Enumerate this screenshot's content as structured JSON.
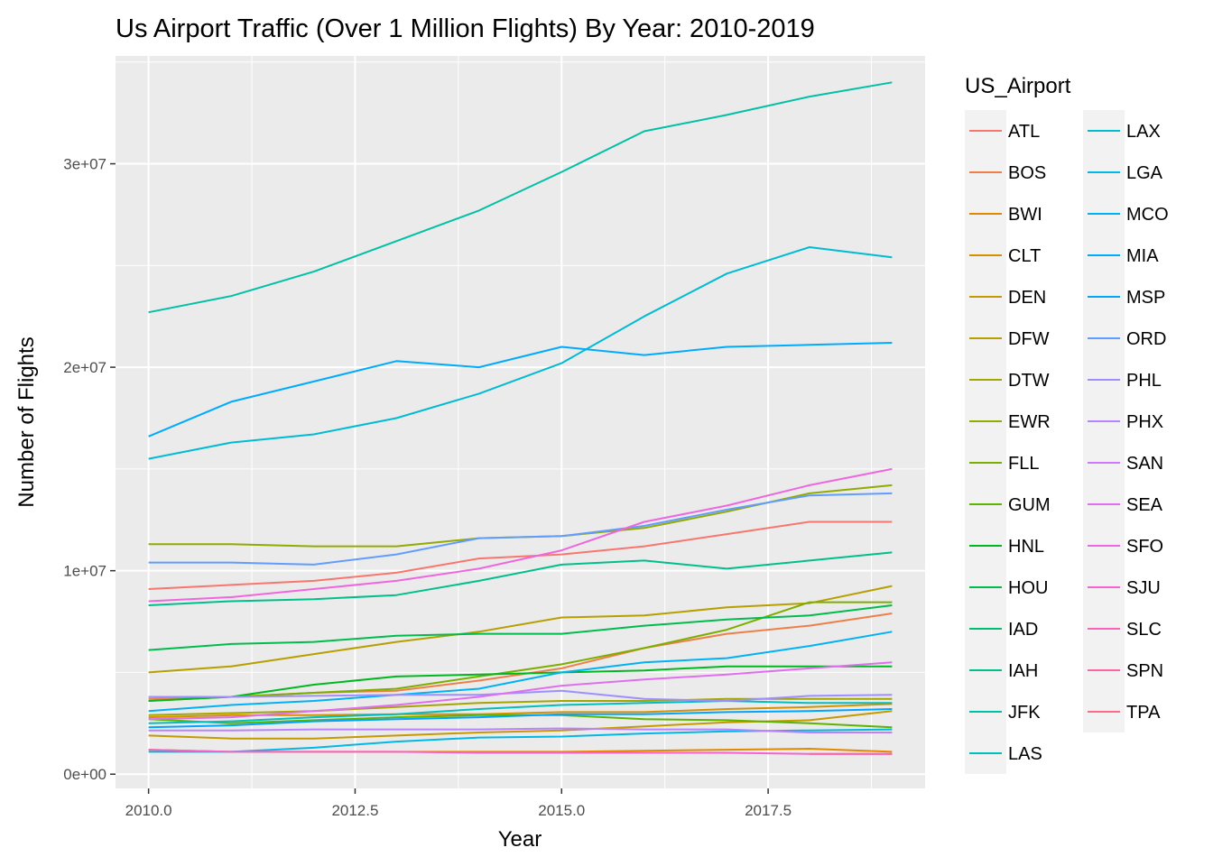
{
  "chart_data": {
    "type": "line",
    "title": "Us Airport Traffic (Over 1 Million Flights) By Year: 2010-2019",
    "xlabel": "Year",
    "ylabel": "Number of Flights",
    "xlim": [
      2009.6,
      2019.4
    ],
    "ylim": [
      -700000,
      35300000
    ],
    "x_ticks": [
      2010,
      2012.5,
      2015,
      2017.5
    ],
    "x_tick_labels": [
      "2010.0",
      "2012.5",
      "2015.0",
      "2017.5"
    ],
    "y_ticks": [
      0,
      10000000,
      20000000,
      30000000
    ],
    "y_tick_labels": [
      "0e+00",
      "1e+07",
      "2e+07",
      "3e+07"
    ],
    "grid": true,
    "legend_title": "US_Airport",
    "legend_position": "right",
    "x": [
      2010,
      2011,
      2012,
      2013,
      2014,
      2015,
      2016,
      2017,
      2018,
      2019
    ],
    "series": [
      {
        "name": "ATL",
        "color": "#F8766D",
        "values": [
          9100000.0,
          9300000.0,
          9500000.0,
          9900000.0,
          10600000.0,
          10800000.0,
          11200000.0,
          11800000.0,
          12400000.0,
          12400000.0
        ]
      },
      {
        "name": "BOS",
        "color": "#EF7F49",
        "values": [
          3700000.0,
          3800000.0,
          4000000.0,
          4100000.0,
          4600000.0,
          5200000.0,
          6200000.0,
          6900000.0,
          7300000.0,
          7900000.0
        ]
      },
      {
        "name": "BWI",
        "color": "#E38900",
        "values": [
          1200000.0,
          1100000.0,
          1100000.0,
          1100000.0,
          1100000.0,
          1100000.0,
          1150000.0,
          1200000.0,
          1250000.0,
          1100000.0
        ]
      },
      {
        "name": "CLT",
        "color": "#D59100",
        "values": [
          2800000.0,
          2900000.0,
          2900000.0,
          2950000.0,
          2950000.0,
          3050000.0,
          3050000.0,
          3200000.0,
          3300000.0,
          3450000.0
        ]
      },
      {
        "name": "DEN",
        "color": "#C49A00",
        "values": [
          1900000.0,
          1750000.0,
          1750000.0,
          1900000.0,
          2050000.0,
          2150000.0,
          2350000.0,
          2550000.0,
          2650000.0,
          3100000.0
        ]
      },
      {
        "name": "DFW",
        "color": "#B79F00",
        "values": [
          5000000.0,
          5300000.0,
          5900000.0,
          6500000.0,
          7000000.0,
          7700000.0,
          7800000.0,
          8200000.0,
          8400000.0,
          9250000.0
        ]
      },
      {
        "name": "DTW",
        "color": "#A3A500",
        "values": [
          2900000.0,
          3000000.0,
          3100000.0,
          3300000.0,
          3500000.0,
          3600000.0,
          3600000.0,
          3700000.0,
          3700000.0,
          3700000.0
        ]
      },
      {
        "name": "EWR",
        "color": "#93AA00",
        "values": [
          11300000.0,
          11300000.0,
          11200000.0,
          11200000.0,
          11600000.0,
          11700000.0,
          12100000.0,
          12900000.0,
          13800000.0,
          14200000.0
        ]
      },
      {
        "name": "FLL",
        "color": "#7CAE00",
        "values": [
          3600000.0,
          3800000.0,
          4000000.0,
          4200000.0,
          4800000.0,
          5400000.0,
          6200000.0,
          7100000.0,
          8450000.0,
          8450000.0
        ]
      },
      {
        "name": "GUM",
        "color": "#5EB300",
        "values": [
          2700000.0,
          2500000.0,
          2650000.0,
          2800000.0,
          2900000.0,
          2900000.0,
          2700000.0,
          2650000.0,
          2500000.0,
          2300000.0
        ]
      },
      {
        "name": "HNL",
        "color": "#00B81F",
        "values": [
          3600000.0,
          3800000.0,
          4400000.0,
          4800000.0,
          4900000.0,
          5000000.0,
          5100000.0,
          5300000.0,
          5300000.0,
          5300000.0
        ]
      },
      {
        "name": "HOU",
        "color": "#00BB4E",
        "values": [
          6100000.0,
          6400000.0,
          6500000.0,
          6800000.0,
          6900000.0,
          6900000.0,
          7300000.0,
          7600000.0,
          7800000.0,
          8300000.0
        ]
      },
      {
        "name": "IAD",
        "color": "#00BE70",
        "values": []
      },
      {
        "name": "IAH",
        "color": "#00BF8C",
        "values": [
          8300000.0,
          8500000.0,
          8600000.0,
          8800000.0,
          9500000.0,
          10300000.0,
          10500000.0,
          10100000.0,
          10500000.0,
          10900000.0
        ]
      },
      {
        "name": "JFK",
        "color": "#00C0A5",
        "values": [
          22700000.0,
          23500000.0,
          24700000.0,
          26200000.0,
          27700000.0,
          29600000.0,
          31600000.0,
          32400000.0,
          33300000.0,
          34000000.0
        ]
      },
      {
        "name": "LAS",
        "color": "#00BFBC",
        "values": [
          2500000.0,
          2600000.0,
          2800000.0,
          2950000.0,
          3200000.0,
          3400000.0,
          3500000.0,
          3600000.0,
          3500000.0,
          3500000.0
        ]
      },
      {
        "name": "LAX",
        "color": "#00BCD3",
        "values": [
          15500000.0,
          16300000.0,
          16700000.0,
          17500000.0,
          18700000.0,
          20200000.0,
          22500000.0,
          24600000.0,
          25900000.0,
          25400000.0
        ]
      },
      {
        "name": "LGA",
        "color": "#00B8E5",
        "values": [
          1100000.0,
          1100000.0,
          1300000.0,
          1600000.0,
          1800000.0,
          1850000.0,
          2000000.0,
          2100000.0,
          2150000.0,
          2200000.0
        ]
      },
      {
        "name": "MCO",
        "color": "#00B2F3",
        "values": [
          3100000.0,
          3400000.0,
          3600000.0,
          3900000.0,
          4200000.0,
          5000000.0,
          5500000.0,
          5700000.0,
          6300000.0,
          7000000.0
        ]
      },
      {
        "name": "MIA",
        "color": "#00ABFD",
        "values": [
          16600000.0,
          18300000.0,
          19300000.0,
          20300000.0,
          20000000.0,
          21000000.0,
          20600000.0,
          21000000.0,
          21100000.0,
          21200000.0
        ]
      },
      {
        "name": "MSP",
        "color": "#00A5FF",
        "values": [
          2300000.0,
          2400000.0,
          2600000.0,
          2700000.0,
          2800000.0,
          2950000.0,
          2950000.0,
          3050000.0,
          3100000.0,
          3200000.0
        ]
      },
      {
        "name": "ORD",
        "color": "#619CFF",
        "values": [
          10400000.0,
          10400000.0,
          10300000.0,
          10800000.0,
          11600000.0,
          11700000.0,
          12200000.0,
          13000000.0,
          13700000.0,
          13800000.0
        ]
      },
      {
        "name": "PHL",
        "color": "#9E8FFF",
        "values": [
          3800000.0,
          3800000.0,
          3850000.0,
          3900000.0,
          3900000.0,
          4100000.0,
          3700000.0,
          3600000.0,
          3850000.0,
          3900000.0
        ]
      },
      {
        "name": "PHX",
        "color": "#B983FF",
        "values": [
          2150000.0,
          2150000.0,
          2200000.0,
          2200000.0,
          2200000.0,
          2250000.0,
          2200000.0,
          2200000.0,
          2050000.0,
          2050000.0
        ]
      },
      {
        "name": "SAN",
        "color": "#CF78FF",
        "values": []
      },
      {
        "name": "SEA",
        "color": "#E06EF0",
        "values": [
          2700000.0,
          2800000.0,
          3100000.0,
          3400000.0,
          3800000.0,
          4350000.0,
          4650000.0,
          4900000.0,
          5200000.0,
          5500000.0
        ]
      },
      {
        "name": "SFO",
        "color": "#EE67DE",
        "values": [
          8500000.0,
          8700000.0,
          9100000.0,
          9500000.0,
          10100000.0,
          11000000.0,
          12400000.0,
          13200000.0,
          14200000.0,
          15000000.0
        ]
      },
      {
        "name": "SJU",
        "color": "#F763CD",
        "values": [
          1200000.0,
          1100000.0,
          1100000.0,
          1100000.0,
          1050000.0,
          1050000.0,
          1050000.0,
          1050000.0,
          1000000.0,
          1000000.0
        ]
      },
      {
        "name": "SLC",
        "color": "#FD61B9",
        "values": []
      },
      {
        "name": "SPN",
        "color": "#FF63A3",
        "values": [
          null,
          null,
          null,
          null,
          null,
          null,
          null,
          null,
          1000000.0,
          1000000.0
        ]
      },
      {
        "name": "TPA",
        "color": "#FF6A8A",
        "values": []
      }
    ]
  }
}
